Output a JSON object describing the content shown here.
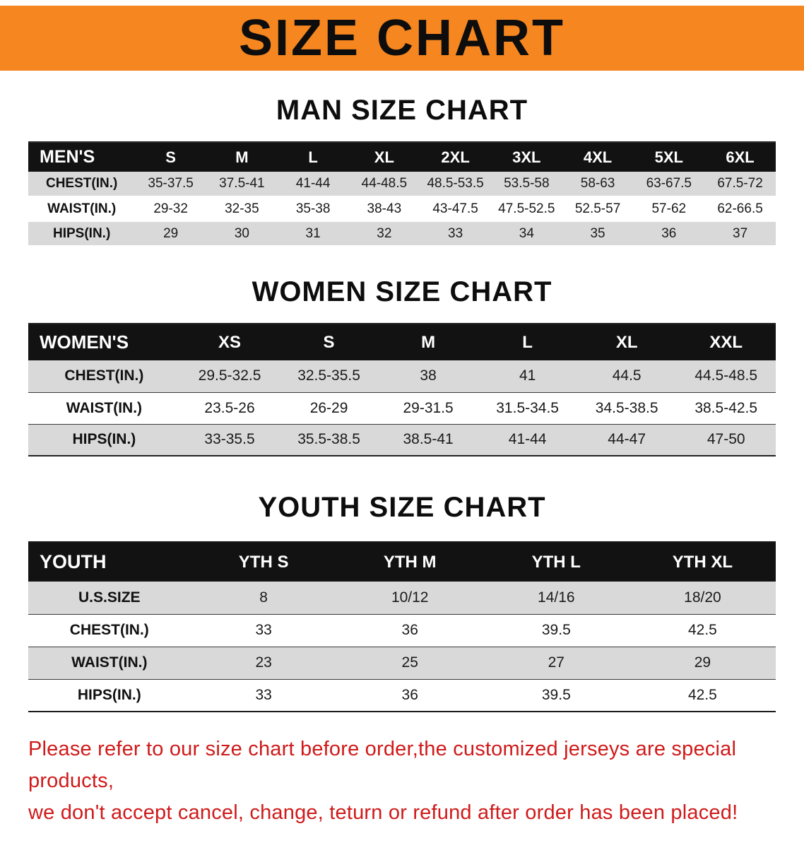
{
  "banner": {
    "title": "SIZE CHART",
    "bg_color": "#f6861f"
  },
  "sections": [
    {
      "heading": "MAN SIZE CHART",
      "table": {
        "header": [
          "MEN'S",
          "S",
          "M",
          "L",
          "XL",
          "2XL",
          "3XL",
          "4XL",
          "5XL",
          "6XL"
        ],
        "rows": [
          {
            "label": "CHEST(IN.)",
            "values": [
              "35-37.5",
              "37.5-41",
              "41-44",
              "44-48.5",
              "48.5-53.5",
              "53.5-58",
              "58-63",
              "63-67.5",
              "67.5-72"
            ]
          },
          {
            "label": "WAIST(IN.)",
            "values": [
              "29-32",
              "32-35",
              "35-38",
              "38-43",
              "43-47.5",
              "47.5-52.5",
              "52.5-57",
              "57-62",
              "62-66.5"
            ]
          },
          {
            "label": "HIPS(IN.)",
            "values": [
              "29",
              "30",
              "31",
              "32",
              "33",
              "34",
              "35",
              "36",
              "37"
            ]
          }
        ]
      }
    },
    {
      "heading": "WOMEN SIZE CHART",
      "table": {
        "header": [
          "WOMEN'S",
          "XS",
          "S",
          "M",
          "L",
          "XL",
          "XXL"
        ],
        "rows": [
          {
            "label": "CHEST(IN.)",
            "values": [
              "29.5-32.5",
              "32.5-35.5",
              "38",
              "41",
              "44.5",
              "44.5-48.5"
            ]
          },
          {
            "label": "WAIST(IN.)",
            "values": [
              "23.5-26",
              "26-29",
              "29-31.5",
              "31.5-34.5",
              "34.5-38.5",
              "38.5-42.5"
            ]
          },
          {
            "label": "HIPS(IN.)",
            "values": [
              "33-35.5",
              "35.5-38.5",
              "38.5-41",
              "41-44",
              "44-47",
              "47-50"
            ]
          }
        ]
      }
    },
    {
      "heading": "YOUTH SIZE CHART",
      "table": {
        "header": [
          "YOUTH",
          "YTH S",
          "YTH M",
          "YTH L",
          "YTH XL"
        ],
        "rows": [
          {
            "label": "U.S.SIZE",
            "values": [
              "8",
              "10/12",
              "14/16",
              "18/20"
            ]
          },
          {
            "label": "CHEST(IN.)",
            "values": [
              "33",
              "36",
              "39.5",
              "42.5"
            ]
          },
          {
            "label": "WAIST(IN.)",
            "values": [
              "23",
              "25",
              "27",
              "29"
            ]
          },
          {
            "label": "HIPS(IN.)",
            "values": [
              "33",
              "36",
              "39.5",
              "42.5"
            ]
          }
        ]
      }
    }
  ],
  "disclaimer": {
    "line1": "Please refer to our size chart before order,the customized jerseys are special products,",
    "line2": "we don't accept cancel, change, teturn or refund after order has been placed!",
    "color": "#d01a1a"
  }
}
